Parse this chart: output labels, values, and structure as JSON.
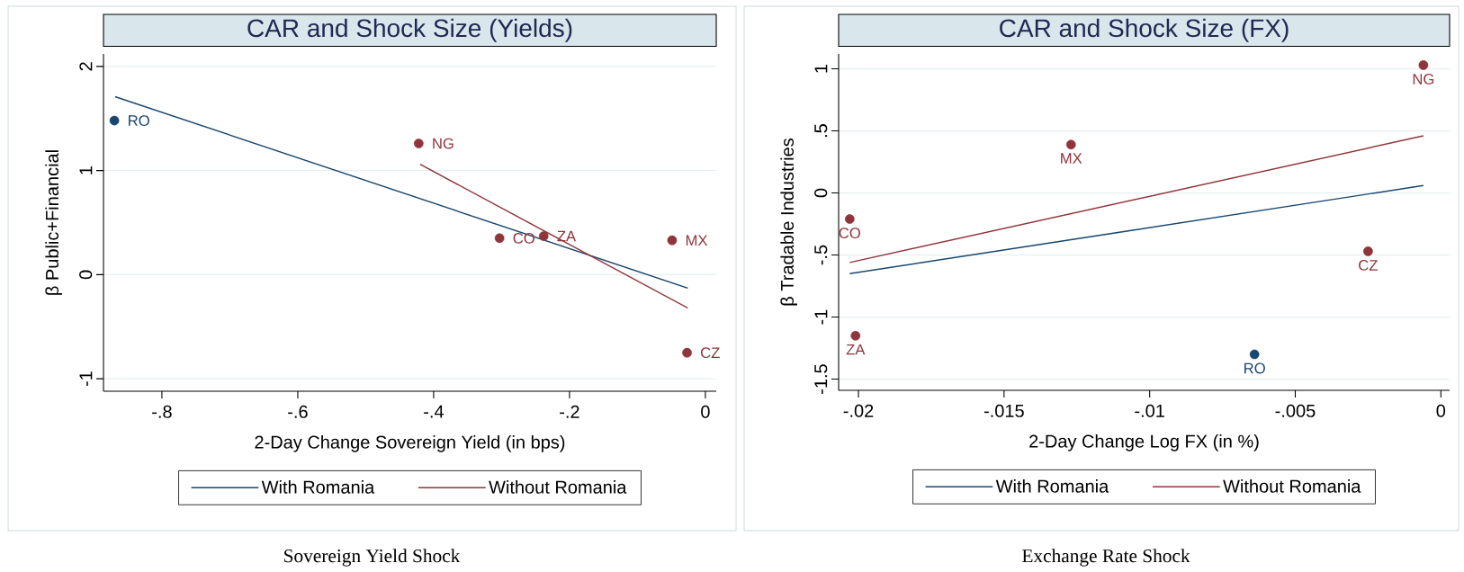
{
  "chart_data": [
    {
      "type": "scatter",
      "title": "CAR and Shock Size (Yields)",
      "xlabel": "2-Day Change Sovereign Yield (in bps)",
      "ylabel": "β Public+Financial",
      "xlim": [
        -0.886,
        0.016
      ],
      "ylim": [
        -1.12,
        2.12
      ],
      "xticks": [
        {
          "value": -0.8,
          "label": "-.8"
        },
        {
          "value": -0.6,
          "label": "-.6"
        },
        {
          "value": -0.4,
          "label": "-.4"
        },
        {
          "value": -0.2,
          "label": "-.2"
        },
        0
      ],
      "yticks": [
        -1,
        0,
        1,
        2
      ],
      "grid": "y",
      "legend": "bottom",
      "marker": "circle",
      "series": [
        {
          "type": "line",
          "marker": "none",
          "name": "With Romania",
          "color": "#1a476f",
          "x": [
            -0.869,
            -0.026
          ],
          "values": [
            1.71,
            -0.13
          ]
        },
        {
          "type": "line",
          "marker": "none",
          "name": "Without Romania",
          "color": "#90353b",
          "x": [
            -0.42,
            -0.026
          ],
          "values": [
            1.06,
            -0.32
          ]
        },
        {
          "color": "#1a476f",
          "x": [
            -0.87
          ],
          "values": [
            1.48
          ]
        },
        {
          "color": "#90353b",
          "x": [
            -0.422,
            -0.303,
            -0.238,
            -0.049,
            -0.027
          ],
          "values": [
            1.26,
            0.35,
            0.37,
            0.33,
            -0.75
          ]
        }
      ],
      "annotations": [
        {
          "text": "RO",
          "x": -0.87,
          "y": 1.48
        },
        {
          "text": "NG",
          "x": -0.422,
          "y": 1.26
        },
        {
          "text": "CO",
          "x": -0.303,
          "y": 0.35
        },
        {
          "text": "ZA",
          "x": -0.238,
          "y": 0.37
        },
        {
          "text": "MX",
          "x": -0.049,
          "y": 0.33
        },
        {
          "text": "CZ",
          "x": -0.027,
          "y": -0.75
        },
        "Sovereign Yield Shock"
      ]
    },
    {
      "type": "scatter",
      "title": "CAR and Shock Size (FX)",
      "xlabel": "2-Day Change Log FX (in %)",
      "ylabel": "β Tradable Industries",
      "xlim": [
        -0.02068,
        0.0003
      ],
      "ylim": [
        -1.59,
        1.12
      ],
      "xticks": [
        {
          "value": -0.02,
          "label": "-.02"
        },
        {
          "value": -0.015,
          "label": "-.015"
        },
        {
          "value": -0.01,
          "label": "-.01"
        },
        {
          "value": -0.005,
          "label": "-.005"
        },
        0
      ],
      "yticks": [
        -1.5,
        -1,
        {
          "value": -0.5,
          "label": "-.5"
        },
        0,
        {
          "value": 0.5,
          "label": ".5"
        },
        1
      ],
      "grid": "y",
      "legend": "bottom",
      "marker": "circle",
      "series": [
        {
          "type": "line",
          "marker": "none",
          "name": "With Romania",
          "color": "#1a476f",
          "x": [
            -0.0203,
            -0.0006
          ],
          "values": [
            -0.65,
            0.06
          ]
        },
        {
          "type": "line",
          "marker": "none",
          "name": "Without Romania",
          "color": "#90353b",
          "x": [
            -0.0203,
            -0.0006
          ],
          "values": [
            -0.56,
            0.46
          ]
        },
        {
          "color": "#1a476f",
          "x": [
            -0.0064
          ],
          "values": [
            -1.3
          ]
        },
        {
          "color": "#90353b",
          "x": [
            -0.0203,
            -0.0201,
            -0.0127,
            -0.0025,
            -0.0006
          ],
          "values": [
            -0.21,
            -1.15,
            0.39,
            -0.47,
            1.03
          ]
        }
      ],
      "annotations": [
        {
          "text": "CO",
          "x": -0.0203,
          "y": -0.21
        },
        {
          "text": "ZA",
          "x": -0.0201,
          "y": -1.15
        },
        {
          "text": "MX",
          "x": -0.0127,
          "y": 0.39
        },
        {
          "text": "RO",
          "x": -0.0064,
          "y": -1.3
        },
        {
          "text": "CZ",
          "x": -0.0025,
          "y": -0.47
        },
        {
          "text": "NG",
          "x": -0.0006,
          "y": 1.03
        },
        "Exchange Rate Shock"
      ]
    }
  ]
}
